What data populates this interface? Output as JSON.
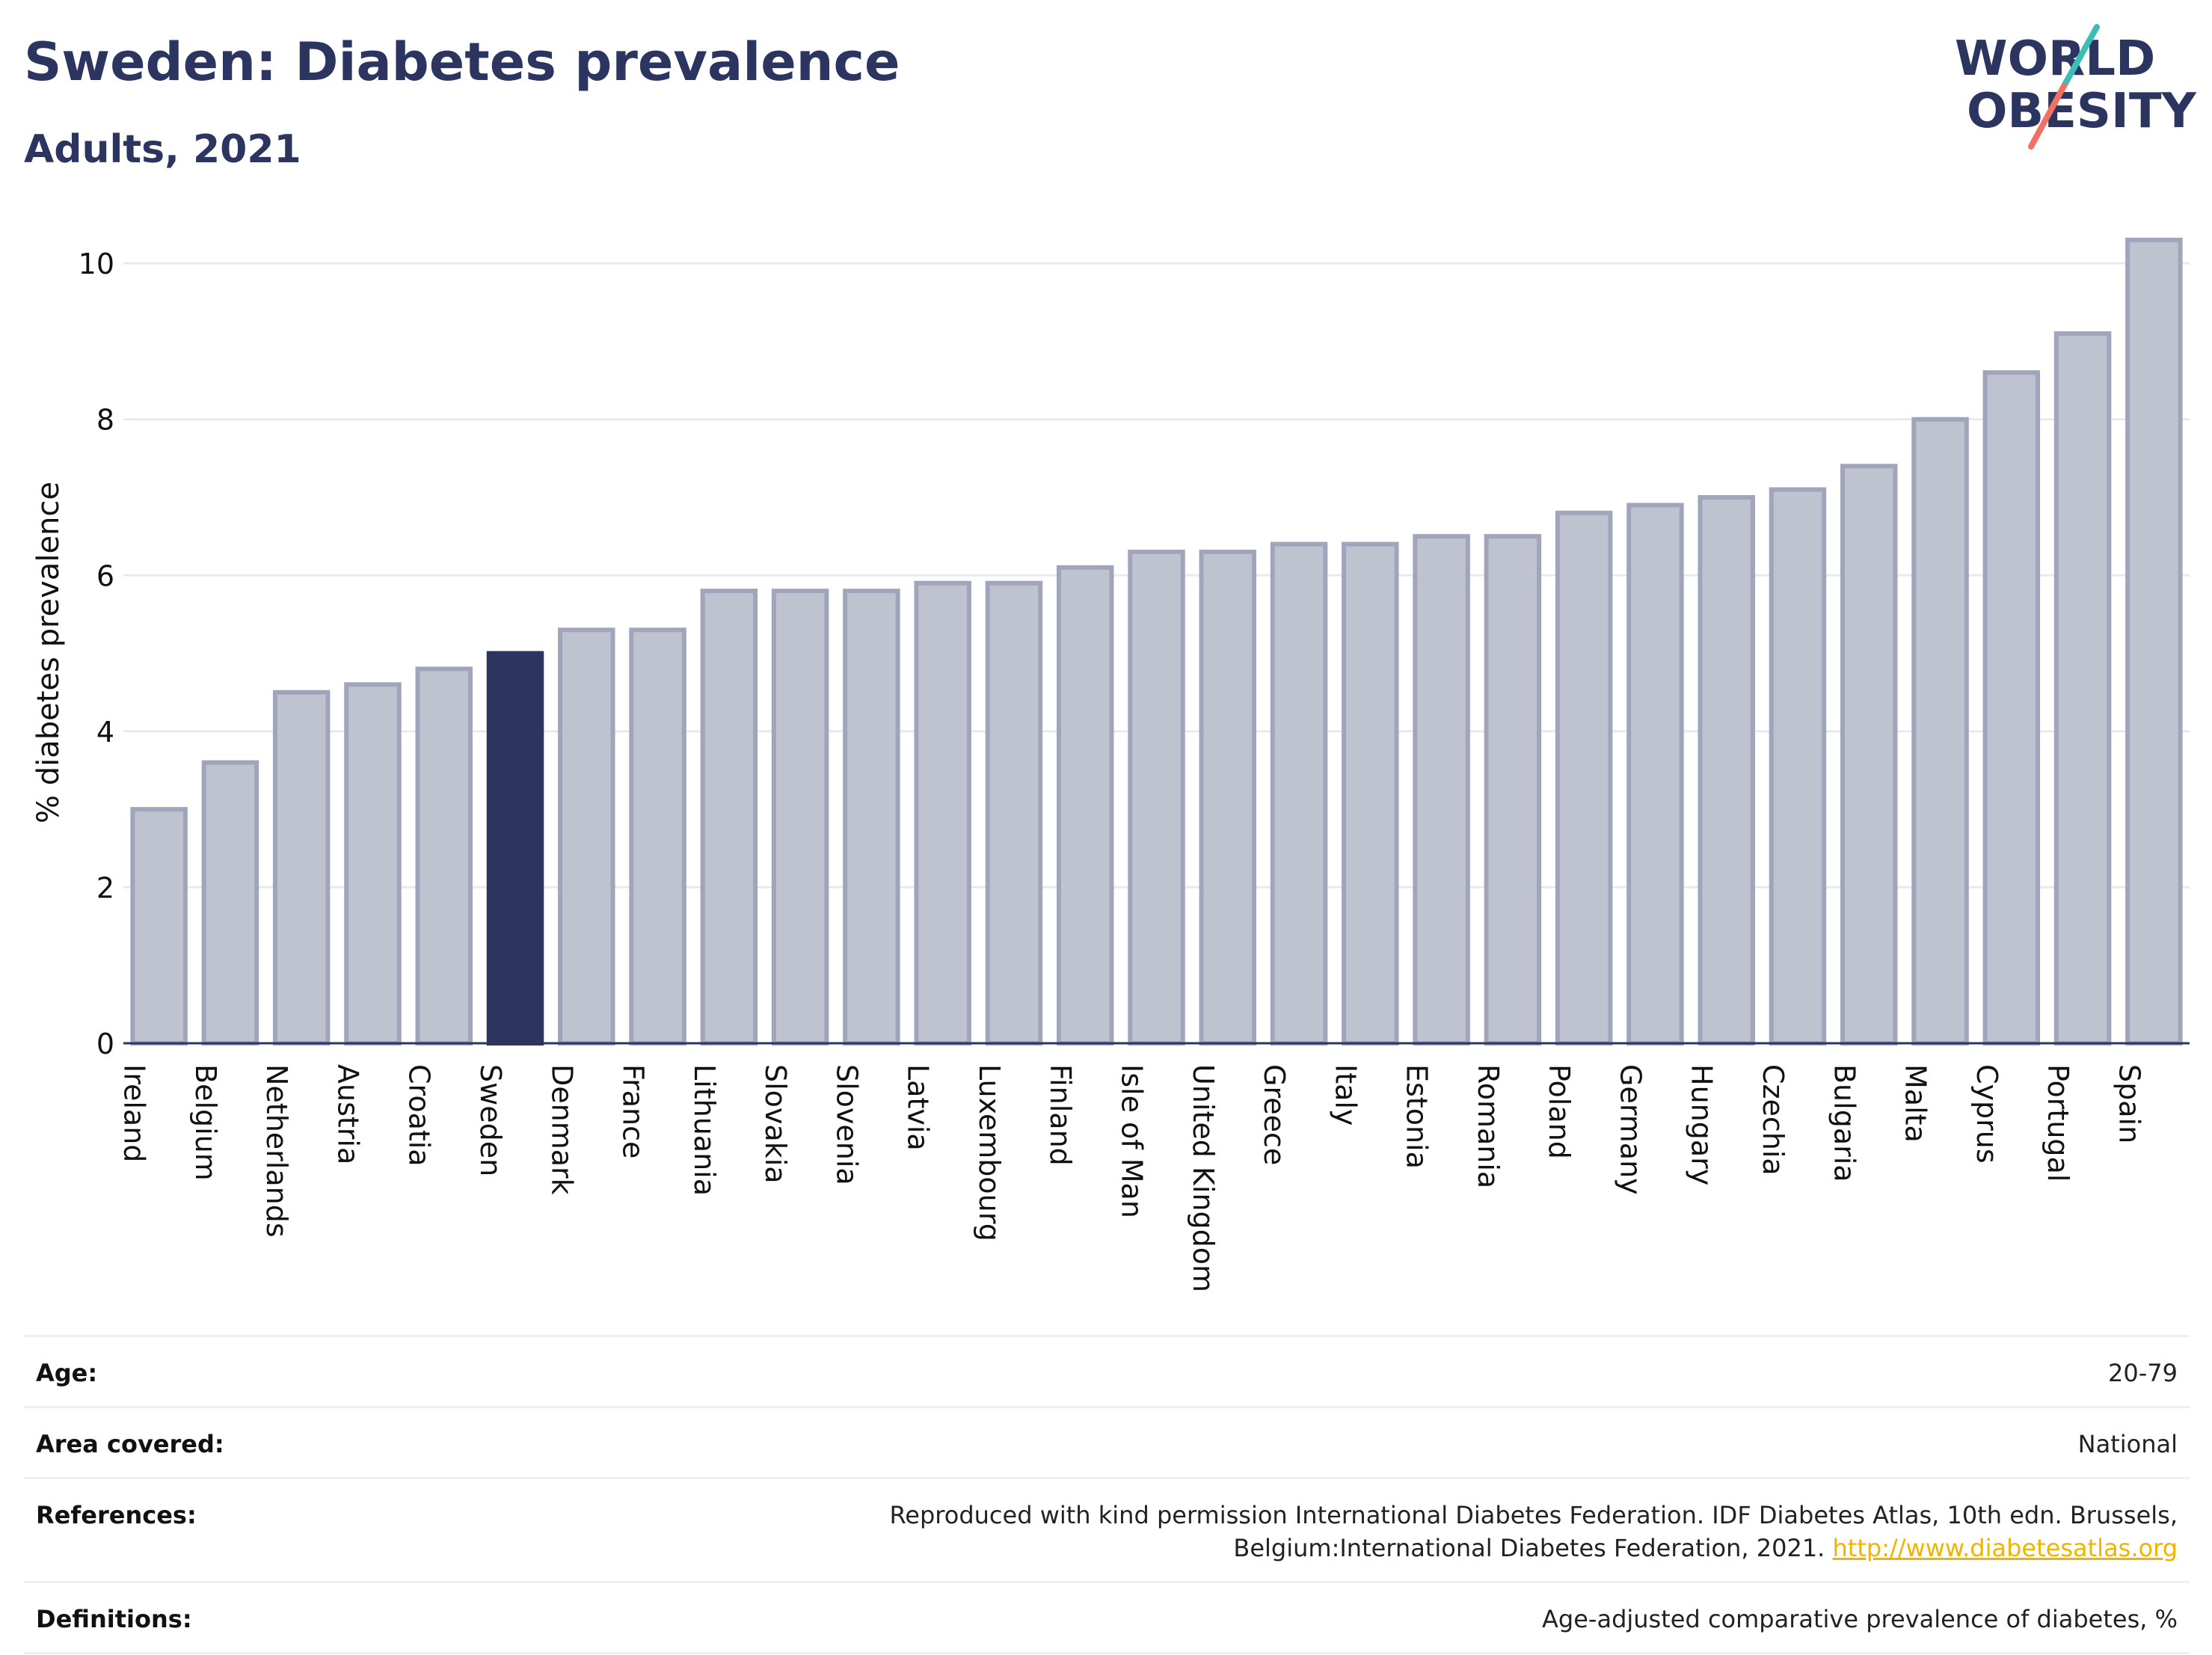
{
  "header": {
    "title": "Sweden: Diabetes prevalence",
    "subtitle": "Adults, 2021"
  },
  "logo": {
    "line1": "WORLD",
    "line2": "OBESITY",
    "color": "#2b3560",
    "slash_top_color": "#3bbfb4",
    "slash_bottom_color": "#f07163"
  },
  "chart_data": {
    "type": "bar",
    "title": "Sweden: Diabetes prevalence",
    "subtitle": "Adults, 2021",
    "xlabel": "",
    "ylabel": "% diabetes prevalence",
    "ylim": [
      0,
      10.5
    ],
    "yticks": [
      0,
      2,
      4,
      6,
      8,
      10
    ],
    "grid": true,
    "highlight": "Sweden",
    "colors": {
      "bar_fill": "#bfc2cf",
      "bar_stroke": "#a1a5bc",
      "highlight_fill": "#2b3560",
      "grid": "#e9eaf0",
      "axis": "#2b3560"
    },
    "categories": [
      "Ireland",
      "Belgium",
      "Netherlands",
      "Austria",
      "Croatia",
      "Sweden",
      "Denmark",
      "France",
      "Lithuania",
      "Slovakia",
      "Slovenia",
      "Latvia",
      "Luxembourg",
      "Finland",
      "Isle of Man",
      "United Kingdom",
      "Greece",
      "Italy",
      "Estonia",
      "Romania",
      "Poland",
      "Germany",
      "Hungary",
      "Czechia",
      "Bulgaria",
      "Malta",
      "Cyprus",
      "Portugal",
      "Spain"
    ],
    "values": [
      3.0,
      3.6,
      4.5,
      4.6,
      4.8,
      5.0,
      5.3,
      5.3,
      5.8,
      5.8,
      5.8,
      5.9,
      5.9,
      6.1,
      6.3,
      6.3,
      6.4,
      6.4,
      6.5,
      6.5,
      6.8,
      6.9,
      7.0,
      7.1,
      7.4,
      8.0,
      8.6,
      9.1,
      10.3
    ]
  },
  "info": {
    "age": {
      "label": "Age:",
      "value": "20-79"
    },
    "area": {
      "label": "Area covered:",
      "value": "National"
    },
    "references": {
      "label": "References:",
      "value": "Reproduced with kind permission International Diabetes Federation.  IDF Diabetes Atlas, 10th edn. Brussels, Belgium:International Diabetes Federation, 2021. ",
      "link": "http://www.diabetesatlas.org"
    },
    "definitions": {
      "label": "Definitions:",
      "value": "Age-adjusted comparative prevalence of diabetes, %"
    }
  }
}
